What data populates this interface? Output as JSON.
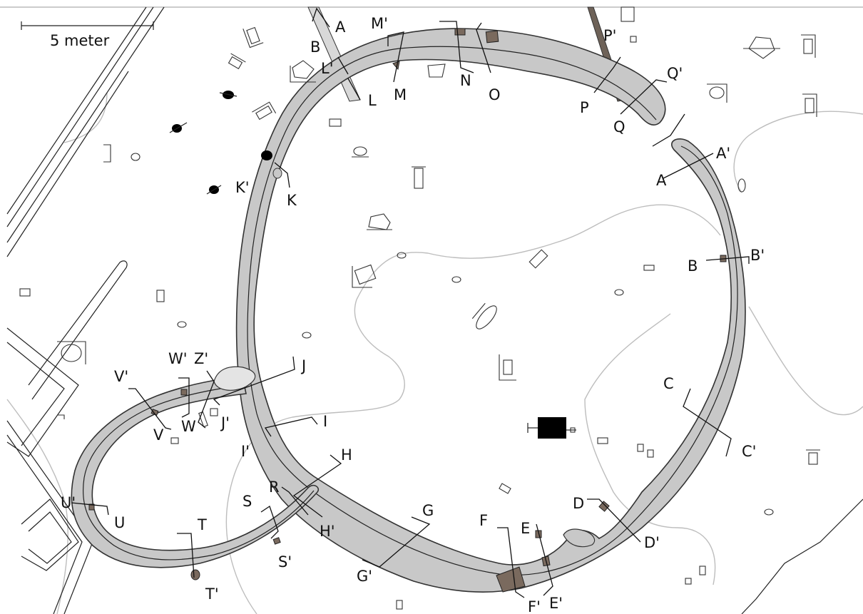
{
  "scale_bar": {
    "label": "5 meter"
  },
  "section_labels": {
    "A": "A",
    "A_prime": "A'",
    "B": "B",
    "B_prime": "B'",
    "C": "C",
    "C_prime": "C'",
    "D": "D",
    "D_prime": "D'",
    "E": "E",
    "E_prime": "E'",
    "F": "F",
    "F_prime": "F'",
    "G": "G",
    "G_prime": "G'",
    "H": "H",
    "H_prime": "H'",
    "I": "I",
    "I_prime": "I'",
    "J": "J",
    "J_prime": "J'",
    "K": "K",
    "K_prime": "K'",
    "L": "L",
    "L_prime": "L'",
    "M": "M",
    "M_prime": "M'",
    "N": "N",
    "O": "O",
    "P": "P",
    "P_prime": "P'",
    "Q": "Q",
    "Q_prime": "Q'",
    "R": "R",
    "S": "S",
    "S_prime": "S'",
    "T": "T",
    "T_prime": "T'",
    "U": "U",
    "U_prime": "U'",
    "V": "V",
    "V_prime": "V'",
    "W": "W",
    "W_prime": "W'",
    "Z_prime": "Z'",
    "A_top": "A",
    "B_top": "B"
  },
  "colors": {
    "ditch_fill": "#c8c8c8",
    "feature_fill": "#7a6a5e",
    "contour": "#bdbdbd",
    "ink": "#111111"
  }
}
